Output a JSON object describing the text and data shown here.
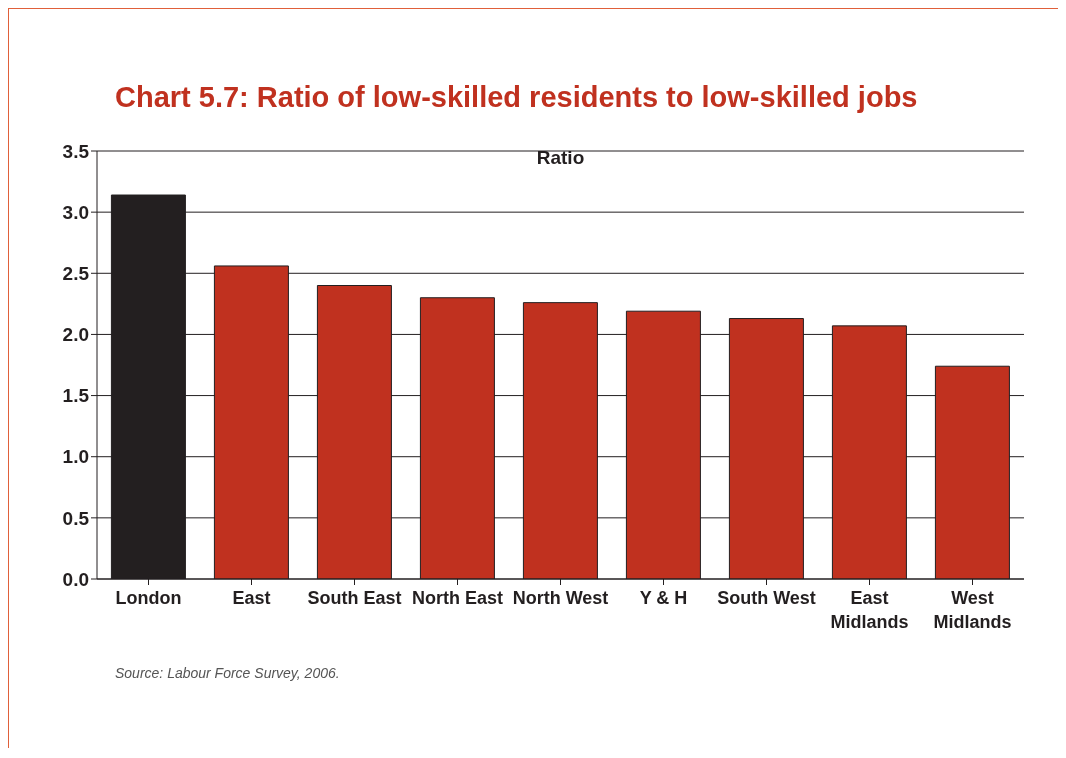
{
  "chart_data": {
    "type": "bar",
    "title": "Chart 5.7: Ratio of low-skilled residents to low-skilled jobs",
    "categories": [
      "London",
      "East",
      "South East",
      "North East",
      "North West",
      "Y & H",
      "South West",
      "East Midlands",
      "West Midlands"
    ],
    "series": [
      {
        "name": "Ratio",
        "values": [
          3.14,
          2.56,
          2.4,
          2.3,
          2.26,
          2.19,
          2.13,
          2.07,
          1.74
        ],
        "colors": [
          "#231f20",
          "#c0311f",
          "#c0311f",
          "#c0311f",
          "#c0311f",
          "#c0311f",
          "#c0311f",
          "#c0311f",
          "#c0311f"
        ]
      }
    ],
    "ylim": [
      0,
      3.5
    ],
    "yticks": [
      {
        "value": 0,
        "label": "0.0"
      },
      {
        "value": 0.5,
        "label": "0.5"
      },
      {
        "value": 1,
        "label": "1.0"
      },
      {
        "value": 1.5,
        "label": "1.5"
      },
      {
        "value": 2,
        "label": "2.0"
      },
      {
        "value": 2.5,
        "label": "2.5"
      },
      {
        "value": 3,
        "label": "3.0"
      },
      {
        "value": 3.5,
        "label": "3.5"
      }
    ],
    "grid": "y",
    "legend": "top",
    "annotations": [
      "Source: Labour Force Survey, 2006."
    ]
  }
}
